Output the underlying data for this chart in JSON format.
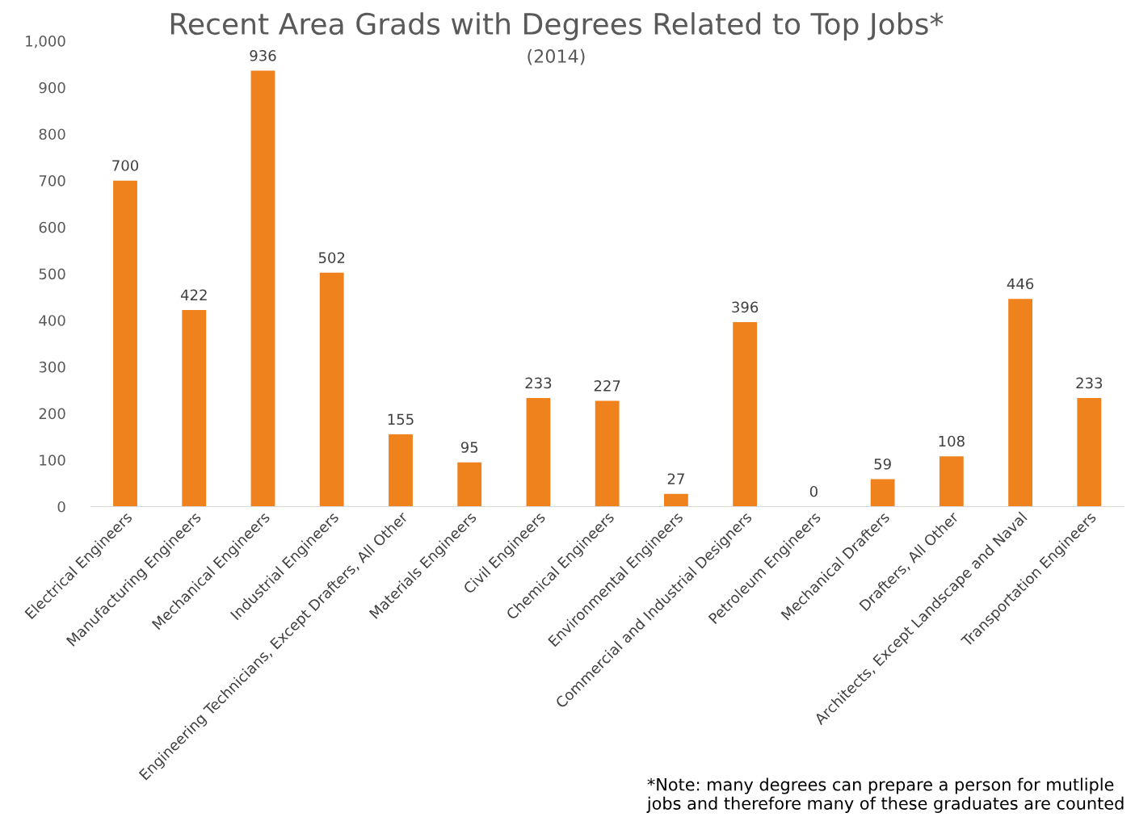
{
  "chart_data": {
    "type": "bar",
    "title": "Recent Area Grads with Degrees Related to Top Jobs*",
    "subtitle": "(2014)",
    "categories": [
      "Electrical Engineers",
      "Manufacturing Engineers",
      "Mechanical Engineers",
      "Industrial Engineers",
      "Engineering Technicians, Except Drafters, All Other",
      "Materials Engineers",
      "Civil Engineers",
      "Chemical Engineers",
      "Environmental Engineers",
      "Commercial and Industrial Designers",
      "Petroleum Engineers",
      "Mechanical Drafters",
      "Drafters, All Other",
      "Architects, Except Landscape and Naval",
      "Transportation Engineers"
    ],
    "values": [
      700,
      422,
      936,
      502,
      155,
      95,
      233,
      227,
      27,
      396,
      0,
      59,
      108,
      446,
      233
    ],
    "color": "#f0821e",
    "data_labels": true,
    "grid": false,
    "ylim": [
      0,
      1000
    ],
    "yticks": [
      0,
      100,
      200,
      300,
      400,
      500,
      600,
      700,
      800,
      900,
      {
        "value": 1000,
        "label": "1,000"
      }
    ],
    "annotations": [
      "*Note: many degrees can prepare a person for mutliple\njobs and therefore many of these graduates are counted"
    ]
  }
}
